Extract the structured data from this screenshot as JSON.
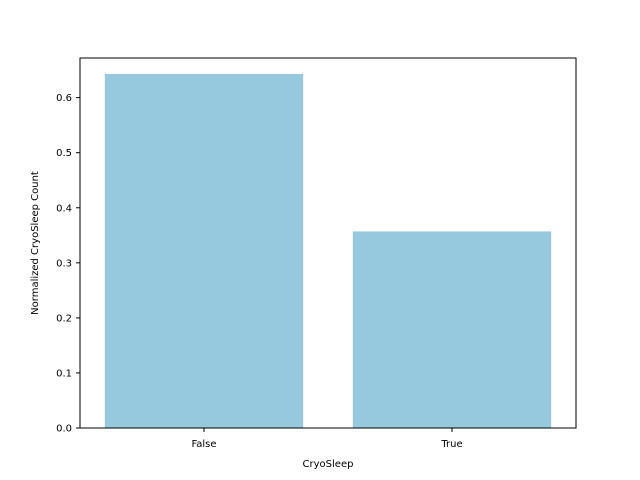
{
  "chart_data": {
    "type": "bar",
    "categories": [
      "False",
      "True"
    ],
    "values": [
      0.643,
      0.357
    ],
    "title": "",
    "xlabel": "CryoSleep",
    "ylabel": "Normalized CryoSleep Count",
    "ylim": [
      0,
      0.672
    ],
    "yticks": [
      0.0,
      0.1,
      0.2,
      0.3,
      0.4,
      0.5,
      0.6
    ],
    "ytick_labels": [
      "0.0",
      "0.1",
      "0.2",
      "0.3",
      "0.4",
      "0.5",
      "0.6"
    ],
    "grid": false,
    "legend": "none",
    "bar_color": "#96c9de"
  }
}
